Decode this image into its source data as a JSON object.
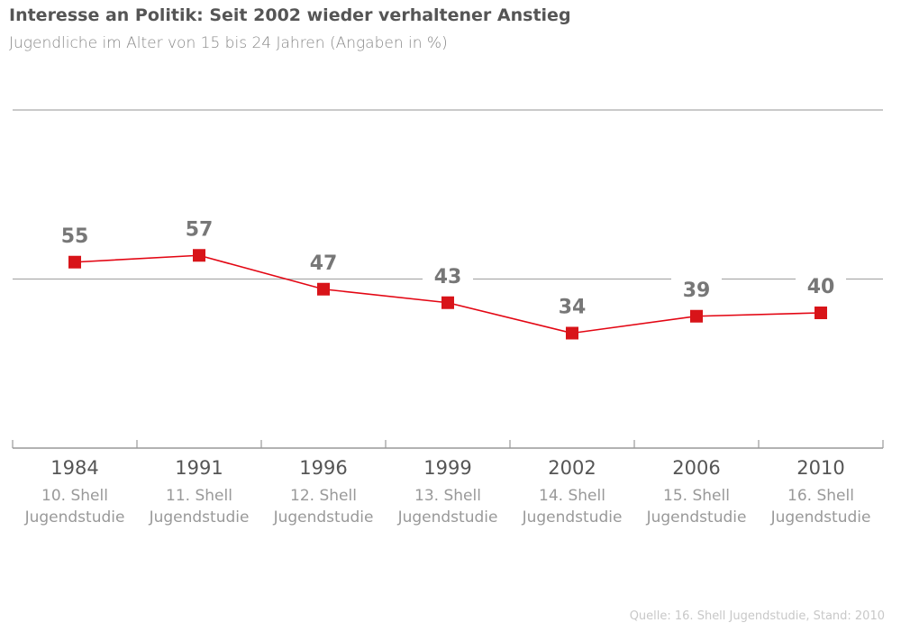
{
  "chart_data": {
    "type": "line",
    "title": "Interesse an Politik: Seit 2002 wieder verhaltener Anstieg",
    "subtitle": "Jugendliche im Alter von 15 bis 24 Jahren (Angaben in %)",
    "categories": [
      "1984",
      "1991",
      "1996",
      "1999",
      "2002",
      "2006",
      "2010"
    ],
    "sublabels": [
      [
        "10. Shell",
        "Jugendstudie"
      ],
      [
        "11. Shell",
        "Jugendstudie"
      ],
      [
        "12. Shell",
        "Jugendstudie"
      ],
      [
        "13. Shell",
        "Jugendstudie"
      ],
      [
        "14. Shell",
        "Jugendstudie"
      ],
      [
        "15. Shell",
        "Jugendstudie"
      ],
      [
        "16. Shell",
        "Jugendstudie"
      ]
    ],
    "values": [
      55,
      57,
      47,
      43,
      34,
      39,
      40
    ],
    "ylim": [
      0,
      100
    ],
    "gridlines": [
      50,
      100
    ],
    "grid": true,
    "line_color": "#e30613",
    "label_color": "#777777"
  },
  "source": "Quelle: 16. Shell Jugendstudie, Stand: 2010"
}
